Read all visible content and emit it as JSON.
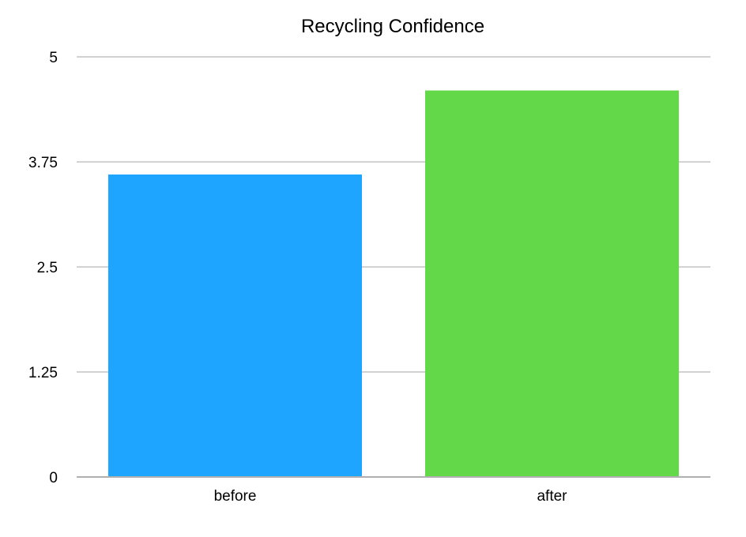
{
  "chart_data": {
    "type": "bar",
    "title": "Recycling Confidence",
    "categories": [
      "before",
      "after"
    ],
    "values": [
      3.6,
      4.6
    ],
    "colors": [
      "#1ea5ff",
      "#63d848"
    ],
    "xlabel": "",
    "ylabel": "",
    "ylim": [
      0,
      5
    ],
    "yticks": [
      0,
      1.25,
      2.5,
      3.75,
      5
    ],
    "ytick_labels": [
      "0",
      "1.25",
      "2.5",
      "3.75",
      "5"
    ],
    "grid": true,
    "legend": "none"
  },
  "colors": {
    "grid": "#c4c4c4",
    "baseline": "#b0b0b0",
    "text": "#000000"
  }
}
